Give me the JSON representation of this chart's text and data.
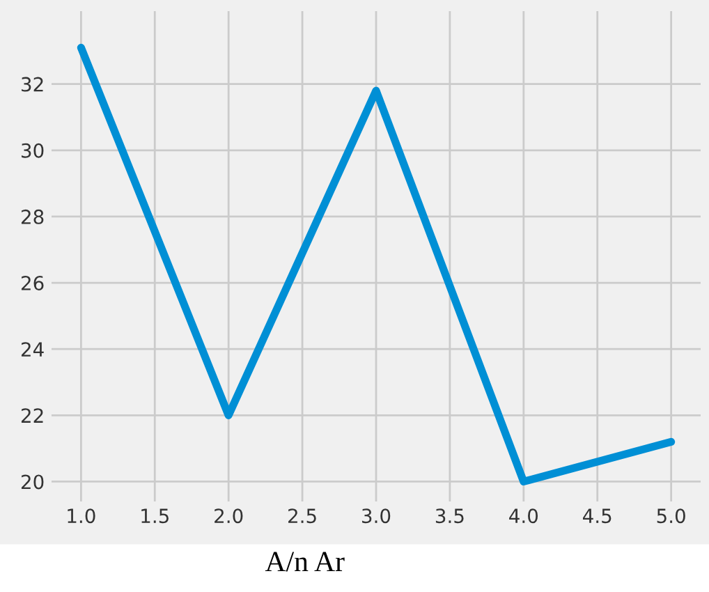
{
  "chart_data": {
    "type": "line",
    "xlabel": "A/n Ar",
    "x": [
      1,
      2,
      3,
      4,
      5
    ],
    "series": [
      {
        "color": "#008fd5",
        "values": [
          33.1,
          22.0,
          31.8,
          20.0,
          21.2
        ]
      }
    ],
    "xlim": [
      0.8,
      5.2
    ],
    "xticks": [
      {
        "value": 1,
        "label": "1.0"
      },
      {
        "value": 1.5,
        "label": "1.5"
      },
      {
        "value": 2,
        "label": "2.0"
      },
      {
        "value": 2.5,
        "label": "2.5"
      },
      {
        "value": 3,
        "label": "3.0"
      },
      {
        "value": 3.5,
        "label": "3.5"
      },
      {
        "value": 4,
        "label": "4.0"
      },
      {
        "value": 4.5,
        "label": "4.5"
      },
      {
        "value": 5,
        "label": "5.0"
      }
    ],
    "ylim": [
      19.4,
      34.2
    ],
    "yticks": [
      20,
      22,
      24,
      26,
      28,
      30,
      32
    ],
    "grid": true,
    "line_style": "solid",
    "marker": "none"
  }
}
